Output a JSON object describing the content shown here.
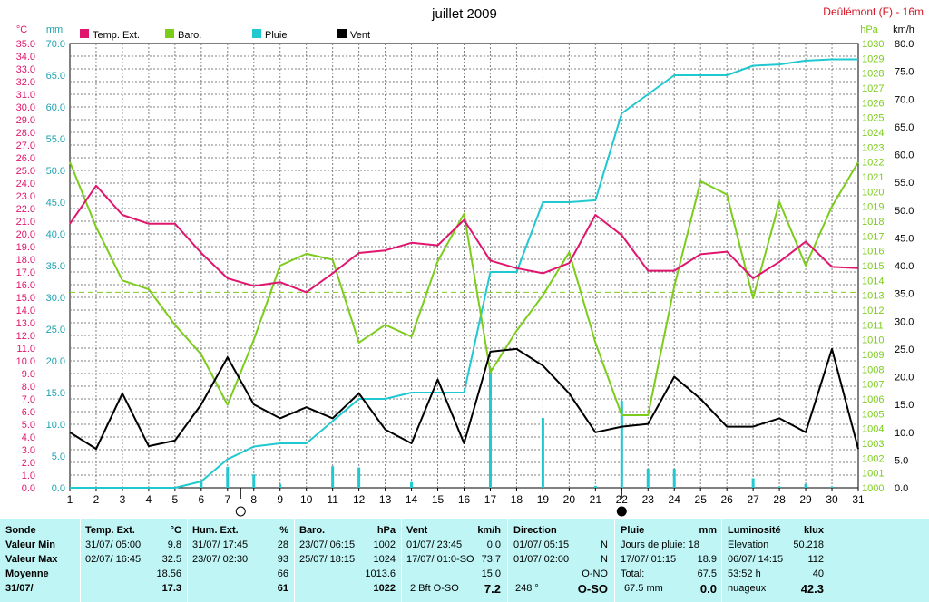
{
  "header": {
    "title": "juillet 2009",
    "station": "Deûlémont (F) - 16m"
  },
  "axes": {
    "left_unit_1": "°C",
    "left_unit_2": "mm",
    "right_unit_1": "hPa",
    "right_unit_2": "km/h"
  },
  "legend": [
    {
      "label": "Temp. Ext.",
      "color": "#e0166e"
    },
    {
      "label": "Baro.",
      "color": "#7ccc1c"
    },
    {
      "label": "Pluie",
      "color": "#20c8d0"
    },
    {
      "label": "Vent",
      "color": "#000000"
    }
  ],
  "chart_data": {
    "type": "line",
    "title": "juillet 2009",
    "x": [
      1,
      2,
      3,
      4,
      5,
      6,
      7,
      8,
      9,
      10,
      11,
      12,
      13,
      14,
      15,
      16,
      17,
      18,
      19,
      20,
      21,
      22,
      23,
      24,
      25,
      26,
      27,
      28,
      29,
      30,
      31
    ],
    "xlim": [
      1,
      31
    ],
    "temp_axis": {
      "unit": "°C",
      "range": [
        0,
        35
      ],
      "step": 1
    },
    "rain_axis": {
      "unit": "mm",
      "range": [
        0,
        70
      ],
      "step": 5
    },
    "baro_axis": {
      "unit": "hPa",
      "range": [
        1000,
        1030
      ],
      "step": 1
    },
    "wind_axis": {
      "unit": "km/h",
      "range": [
        0,
        80
      ],
      "step": 5
    },
    "grid": true,
    "legend_position": "top-left",
    "moon_phases": [
      {
        "day": 7.5,
        "phase": "full"
      },
      {
        "day": 22,
        "phase": "new"
      }
    ],
    "baro_reference": 1013.2,
    "series": [
      {
        "name": "Temp. Ext.",
        "axis": "temp",
        "color": "#e0166e",
        "values": [
          20.8,
          23.8,
          21.5,
          20.8,
          20.8,
          18.5,
          16.5,
          15.9,
          16.2,
          15.4,
          16.9,
          18.5,
          18.7,
          19.3,
          19.1,
          21.1,
          17.9,
          17.3,
          16.9,
          17.7,
          21.5,
          19.9,
          17.1,
          17.1,
          18.4,
          18.6,
          16.5,
          17.8,
          19.4,
          17.4,
          17.3
        ]
      },
      {
        "name": "Baro.",
        "axis": "baro",
        "color": "#7ccc1c",
        "values": [
          1022,
          1017.6,
          1014,
          1013.4,
          1011,
          1009,
          1005.6,
          1010,
          1015,
          1015.8,
          1015.4,
          1009.8,
          1011,
          1010.2,
          1015.3,
          1018.5,
          1007.8,
          1010.6,
          1013,
          1015.9,
          1009.8,
          1004.9,
          1004.9,
          1013.6,
          1020.7,
          1019.8,
          1012.8,
          1019.3,
          1015,
          1019,
          1022
        ]
      },
      {
        "name": "Pluie",
        "axis": "rain",
        "color": "#20c8d0",
        "values": [
          0,
          0,
          0,
          0,
          0,
          1,
          4.5,
          6.5,
          7,
          7,
          10.5,
          14,
          14,
          15,
          15,
          15,
          34,
          34,
          45,
          45,
          45.3,
          59,
          62,
          65,
          65,
          65,
          66.5,
          66.7,
          67.3,
          67.5,
          67.5
        ],
        "daily": [
          0,
          0,
          0,
          0,
          0,
          1,
          3.3,
          2.1,
          0.6,
          0,
          3.4,
          3.2,
          0,
          0.9,
          0,
          0,
          18.9,
          0,
          11,
          0,
          0.3,
          13.7,
          3,
          3,
          0,
          0,
          1.5,
          0.2,
          0.6,
          0.2,
          0
        ]
      },
      {
        "name": "Vent",
        "axis": "wind",
        "color": "#000000",
        "values": [
          10,
          7,
          17,
          7.5,
          8.5,
          15,
          23.5,
          15,
          12.5,
          14.5,
          12.5,
          17,
          10.5,
          8,
          19.5,
          8,
          24.5,
          25,
          22,
          17,
          10,
          11,
          11.5,
          20,
          16,
          11,
          11,
          12.5,
          10,
          25,
          7
        ]
      }
    ]
  },
  "summary": {
    "labels": {
      "title": "Sonde",
      "min": "Valeur Min",
      "max": "Valeur Max",
      "avg": "Moyenne",
      "date": "31/07/"
    },
    "temp": {
      "title": "Temp. Ext.",
      "unit": "°C",
      "min_time": "31/07/  05:00",
      "min_val": "9.8",
      "max_time": "02/07/  16:45",
      "max_val": "32.5",
      "avg": "18.56",
      "current": "17.3"
    },
    "hum": {
      "title": "Hum. Ext.",
      "unit": "%",
      "min_time": "31/07/  17:45",
      "min_val": "28",
      "max_time": "23/07/  02:30",
      "max_val": "93",
      "avg": "66",
      "current": "61"
    },
    "baro": {
      "title": "Baro.",
      "unit": "hPa",
      "min_time": "23/07/  06:15",
      "min_val": "1002",
      "max_time": "25/07/  18:15",
      "max_val": "1024",
      "avg": "1013.6",
      "current": "1022"
    },
    "wind": {
      "title": "Vent",
      "unit": "km/h",
      "min_time": "01/07/  23:45",
      "min_val": "0.0",
      "max_time": "17/07/  01:0-SO",
      "max_val": "73.7",
      "avg": "15.0",
      "current_label": "2 Bft O-SO",
      "current": "7.2"
    },
    "dir": {
      "title": "Direction",
      "min_time": "01/07/  05:15",
      "min_val": "N",
      "max_time": "01/07/  02:00",
      "max_val": "N",
      "avg": "O-NO",
      "current_label": "248 °",
      "current": "O-SO"
    },
    "rain": {
      "title": "Pluie",
      "unit": "mm",
      "line1": "Jours de pluie: 18",
      "max_time": "17/07/  01:15",
      "max_val": "18.9",
      "total_label": "Total:",
      "total": "67.5",
      "current_label": "67.5 mm",
      "current": "0.0"
    },
    "lum": {
      "title": "Luminosité",
      "unit": "klux",
      "elev_label": "Elevation",
      "elev_val": "50.218",
      "max_time": "06/07/  14:15",
      "max_val": "112",
      "avg_label": "53:52 h",
      "avg": "40",
      "current_label": "nuageux",
      "current": "42.3"
    }
  }
}
